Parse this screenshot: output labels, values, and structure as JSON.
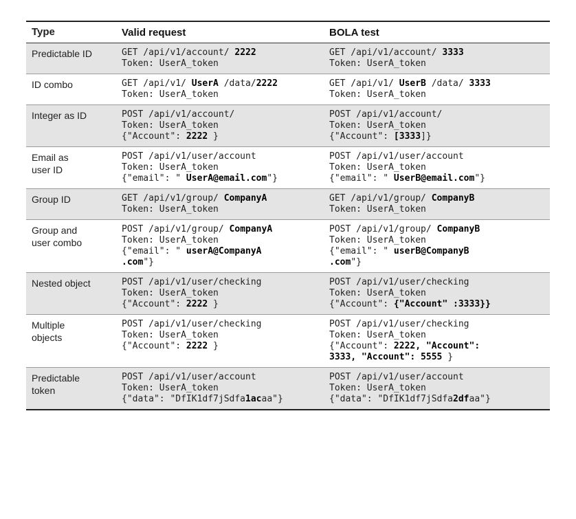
{
  "headers": {
    "type": "Type",
    "valid": "Valid request",
    "bola": "BOLA test"
  },
  "rows": [
    {
      "type_lines": [
        "Predictable ID"
      ],
      "shaded": true,
      "valid": [
        [
          [
            "GET /api/v1/account/ ",
            false
          ],
          [
            "2222",
            true
          ]
        ],
        [
          [
            "Token: UserA_token",
            false
          ]
        ]
      ],
      "bola": [
        [
          [
            "GET /api/v1/account/ ",
            false
          ],
          [
            "3333",
            true
          ]
        ],
        [
          [
            "Token: UserA_token",
            false
          ]
        ]
      ]
    },
    {
      "type_lines": [
        "ID combo"
      ],
      "shaded": false,
      "valid": [
        [
          [
            "GET /api/v1/ ",
            false
          ],
          [
            "UserA",
            true
          ],
          [
            " /data/",
            false
          ],
          [
            "2222",
            true
          ]
        ],
        [
          [
            "Token: UserA_token",
            false
          ]
        ]
      ],
      "bola": [
        [
          [
            "GET /api/v1/ ",
            false
          ],
          [
            "UserB",
            true
          ],
          [
            " /data/ ",
            false
          ],
          [
            "3333",
            true
          ]
        ],
        [
          [
            "Token: UserA_token",
            false
          ]
        ]
      ]
    },
    {
      "type_lines": [
        "Integer as ID"
      ],
      "shaded": true,
      "valid": [
        [
          [
            "POST /api/v1/account/",
            false
          ]
        ],
        [
          [
            "Token: UserA_token",
            false
          ]
        ],
        [
          [
            "{\"Account\": ",
            false
          ],
          [
            "2222",
            true
          ],
          [
            " }",
            false
          ]
        ]
      ],
      "bola": [
        [
          [
            "POST /api/v1/account/",
            false
          ]
        ],
        [
          [
            "Token: UserA_token",
            false
          ]
        ],
        [
          [
            "{\"Account\": ",
            false
          ],
          [
            "[3333",
            true
          ],
          [
            "]}",
            false
          ]
        ]
      ]
    },
    {
      "type_lines": [
        "Email as",
        "user ID"
      ],
      "shaded": false,
      "valid": [
        [
          [
            "POST /api/v1/user/account",
            false
          ]
        ],
        [
          [
            "Token: UserA_token",
            false
          ]
        ],
        [
          [
            "{\"email\": \" ",
            false
          ],
          [
            "UserA@email.com",
            true
          ],
          [
            "\"}",
            false
          ]
        ]
      ],
      "bola": [
        [
          [
            "POST /api/v1/user/account",
            false
          ]
        ],
        [
          [
            "Token: UserA_token",
            false
          ]
        ],
        [
          [
            "{\"email\": \" ",
            false
          ],
          [
            "UserB@email.com",
            true
          ],
          [
            "\"}",
            false
          ]
        ]
      ]
    },
    {
      "type_lines": [
        "Group ID"
      ],
      "shaded": true,
      "valid": [
        [
          [
            "GET /api/v1/group/ ",
            false
          ],
          [
            "CompanyA",
            true
          ]
        ],
        [
          [
            "Token: UserA_token",
            false
          ]
        ]
      ],
      "bola": [
        [
          [
            "GET /api/v1/group/ ",
            false
          ],
          [
            "CompanyB",
            true
          ]
        ],
        [
          [
            "Token: UserA_token",
            false
          ]
        ]
      ]
    },
    {
      "type_lines": [
        "Group and",
        "user combo"
      ],
      "shaded": false,
      "valid": [
        [
          [
            "POST /api/v1/group/ ",
            false
          ],
          [
            "CompanyA",
            true
          ]
        ],
        [
          [
            "Token: UserA_token",
            false
          ]
        ],
        [
          [
            "{\"email\": \" ",
            false
          ],
          [
            "userA@CompanyA",
            true
          ]
        ],
        [
          [
            ".com",
            true
          ],
          [
            "\"}",
            false
          ]
        ]
      ],
      "bola": [
        [
          [
            "POST /api/v1/group/ ",
            false
          ],
          [
            "CompanyB",
            true
          ]
        ],
        [
          [
            "Token: UserA_token",
            false
          ]
        ],
        [
          [
            "{\"email\": \" ",
            false
          ],
          [
            "userB@CompanyB",
            true
          ]
        ],
        [
          [
            ".com",
            true
          ],
          [
            "\"}",
            false
          ]
        ]
      ]
    },
    {
      "type_lines": [
        "Nested object"
      ],
      "shaded": true,
      "valid": [
        [
          [
            "POST /api/v1/user/checking",
            false
          ]
        ],
        [
          [
            "Token: UserA_token",
            false
          ]
        ],
        [
          [
            "{\"Account\": ",
            false
          ],
          [
            "2222",
            true
          ],
          [
            " }",
            false
          ]
        ]
      ],
      "bola": [
        [
          [
            "POST /api/v1/user/checking",
            false
          ]
        ],
        [
          [
            "Token: UserA_token",
            false
          ]
        ],
        [
          [
            "{\"Account\": ",
            false
          ],
          [
            "{\"Account\" :3333}}",
            true
          ]
        ]
      ]
    },
    {
      "type_lines": [
        "Multiple",
        "objects"
      ],
      "shaded": false,
      "valid": [
        [
          [
            "POST /api/v1/user/checking",
            false
          ]
        ],
        [
          [
            "Token: UserA_token",
            false
          ]
        ],
        [
          [
            "{\"Account\": ",
            false
          ],
          [
            "2222",
            true
          ],
          [
            " }",
            false
          ]
        ]
      ],
      "bola": [
        [
          [
            "POST /api/v1/user/checking",
            false
          ]
        ],
        [
          [
            "Token: UserA_token",
            false
          ]
        ],
        [
          [
            "{\"Account\": ",
            false
          ],
          [
            "2222, \"Account\":",
            true
          ]
        ],
        [
          [
            "3333, \"Account\": 5555",
            true
          ],
          [
            " }",
            false
          ]
        ]
      ]
    },
    {
      "type_lines": [
        "Predictable",
        "token"
      ],
      "shaded": true,
      "valid": [
        [
          [
            "POST /api/v1/user/account",
            false
          ]
        ],
        [
          [
            "Token: UserA_token",
            false
          ]
        ],
        [
          [
            "{\"data\": \"DfIK1df7jSdfa",
            false
          ],
          [
            "1ac",
            true
          ],
          [
            "aa\"}",
            false
          ]
        ]
      ],
      "bola": [
        [
          [
            "POST /api/v1/user/account",
            false
          ]
        ],
        [
          [
            "Token: UserA_token",
            false
          ]
        ],
        [
          [
            "{\"data\": \"DfIK1df7jSdfa",
            false
          ],
          [
            "2df",
            true
          ],
          [
            "aa\"}",
            false
          ]
        ]
      ]
    }
  ]
}
